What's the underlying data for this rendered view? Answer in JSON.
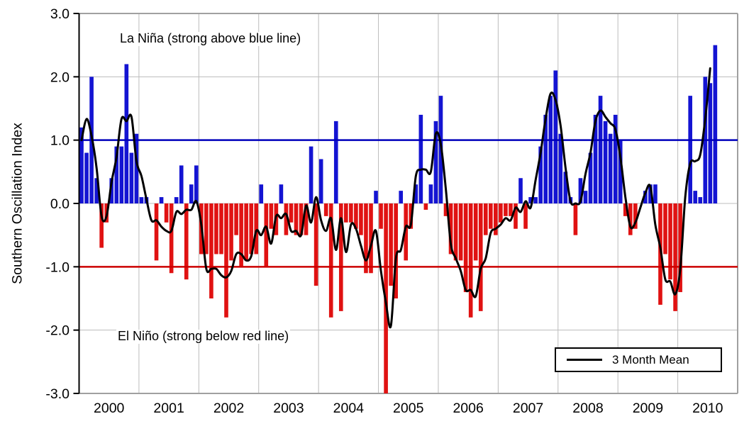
{
  "chart_data": {
    "type": "bar",
    "title": "",
    "ylabel": "Southern Oscillation Index",
    "xlabel": "",
    "ylim": [
      -3.0,
      3.0
    ],
    "y_tick_labels": [
      "3.0",
      "2.0",
      "1.0",
      "0.0",
      "-1.0",
      "-2.0",
      "-3.0"
    ],
    "y_tick_values": [
      3,
      2,
      1,
      0,
      -1,
      -2,
      -3
    ],
    "x_tick_labels": [
      "2000",
      "2001",
      "2002",
      "2003",
      "2004",
      "2005",
      "2006",
      "2007",
      "2008",
      "2009",
      "2010"
    ],
    "axis_start": "2000-01",
    "axis_end": "2010-12",
    "axis_months": 132,
    "data_start": "2000-01",
    "data_end": "2010-08",
    "monthly_soi_values": [
      1.2,
      0.8,
      2.0,
      0.4,
      -0.7,
      -0.3,
      0.4,
      0.9,
      0.9,
      2.2,
      0.8,
      1.1,
      0.1,
      0.1,
      0.0,
      -0.9,
      0.1,
      -0.3,
      -1.1,
      0.1,
      0.6,
      -1.2,
      0.3,
      0.6,
      -0.8,
      -0.8,
      -1.5,
      -0.8,
      -0.8,
      -1.8,
      -0.9,
      -0.5,
      -1.0,
      -0.9,
      -0.8,
      -0.8,
      0.3,
      -1.0,
      -0.4,
      -0.5,
      0.3,
      -0.5,
      -0.3,
      -0.5,
      -0.5,
      -0.5,
      0.9,
      -1.3,
      0.7,
      -0.2,
      -1.8,
      1.3,
      -1.7,
      -0.3,
      -0.3,
      -0.4,
      -0.5,
      -1.1,
      -1.1,
      0.2,
      -0.4,
      -3.0,
      -1.3,
      -1.5,
      0.2,
      -0.9,
      -0.4,
      0.3,
      1.4,
      -0.1,
      0.3,
      1.3,
      1.7,
      -0.2,
      -0.8,
      -0.9,
      -0.9,
      -1.4,
      -1.8,
      -0.9,
      -1.7,
      -0.5,
      -0.4,
      -0.5,
      -0.3,
      -0.2,
      -0.2,
      -0.4,
      0.4,
      -0.4,
      0.1,
      0.1,
      0.9,
      1.4,
      1.7,
      2.1,
      1.1,
      0.5,
      0.1,
      -0.5,
      0.4,
      0.2,
      0.8,
      1.4,
      1.7,
      1.3,
      1.1,
      1.4,
      1.0,
      -0.2,
      -0.5,
      -0.4,
      0.0,
      0.2,
      0.3,
      0.3,
      -1.6,
      -0.8,
      -1.2,
      -1.7,
      -1.4,
      0.0,
      1.7,
      0.2,
      0.1,
      2.0,
      1.9,
      2.5
    ],
    "mean_line": {
      "name": "3 Month Mean",
      "window": 3,
      "color": "#000000"
    },
    "reference_lines": [
      {
        "name": "la-nina-threshold",
        "value": 1.0,
        "color": "#0000bb"
      },
      {
        "name": "el-nino-threshold",
        "value": -1.0,
        "color": "#cc0000"
      }
    ],
    "colors": {
      "positive_bar": "#1414d2",
      "negative_bar": "#e01212",
      "gridline": "#bcbcbc",
      "border": "#a0a0a0",
      "axis": "#000000"
    },
    "legend_position": "bottom-right",
    "grid": true
  },
  "annotations": {
    "la_nina": "La Niña (strong above blue line)",
    "el_nino": "El Niño (strong below red line)"
  },
  "legend": {
    "label": "3 Month Mean"
  }
}
